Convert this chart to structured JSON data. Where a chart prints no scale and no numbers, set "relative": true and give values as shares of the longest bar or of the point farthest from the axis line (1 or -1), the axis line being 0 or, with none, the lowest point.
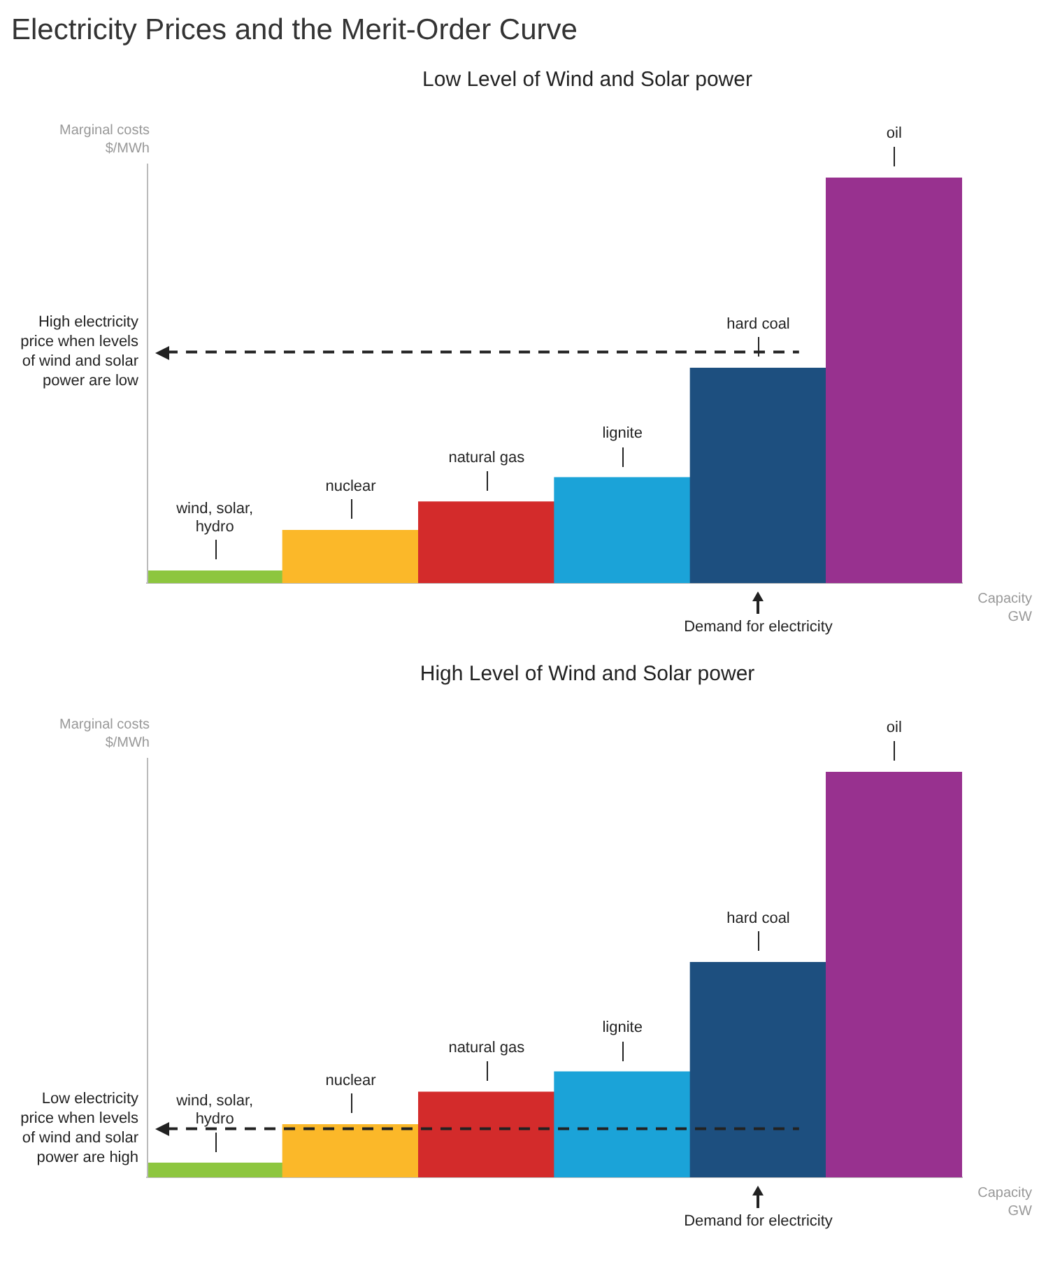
{
  "chart_data": [
    {
      "type": "bar",
      "title": "Electricity Prices and the Merit-Order Curve",
      "subtitle": "Low Level of Wind and Solar power",
      "ylabel": "Marginal costs $/MWh",
      "xlabel": "Capacity GW",
      "relative": true,
      "categories": [
        "wind, solar, hydro",
        "nuclear",
        "natural gas",
        "lignite",
        "hard coal",
        "oil"
      ],
      "values": [
        0.03,
        0.13,
        0.2,
        0.26,
        0.53,
        1
      ],
      "colors": [
        "#8dc63f",
        "#fbb829",
        "#d32b2b",
        "#1ba3d8",
        "#1d4f7f",
        "#98318f"
      ],
      "ref_lines": [
        {
          "axis": "y",
          "value": 0.57,
          "label": "High electricity price when levels of wind and solar power are low",
          "line_style": "dashed",
          "color": "#222222"
        }
      ],
      "annotations": [
        "Demand for electricity"
      ],
      "legend": false,
      "grid": false
    },
    {
      "type": "bar",
      "subtitle": "High Level of Wind and Solar power",
      "ylabel": "Marginal costs $/MWh",
      "xlabel": "Capacity GW",
      "relative": true,
      "categories": [
        "wind, solar, hydro",
        "nuclear",
        "natural gas",
        "lignite",
        "hard coal",
        "oil"
      ],
      "values": [
        0.035,
        0.13,
        0.21,
        0.26,
        0.53,
        1
      ],
      "colors": [
        "#8dc63f",
        "#fbb829",
        "#d32b2b",
        "#1ba3d8",
        "#1d4f7f",
        "#98318f"
      ],
      "ref_lines": [
        {
          "axis": "y",
          "value": 0.12,
          "label": "Low electricity price when levels of wind and solar power are high",
          "line_style": "dashed",
          "color": "#222222"
        }
      ],
      "annotations": [
        "Demand for electricity"
      ],
      "legend": false,
      "grid": false
    }
  ]
}
